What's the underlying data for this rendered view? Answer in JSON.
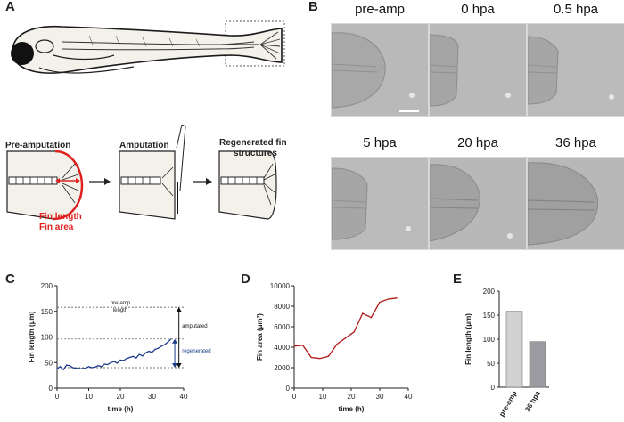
{
  "panels": {
    "a": "A",
    "b": "B",
    "c": "C",
    "d": "D",
    "e": "E"
  },
  "panel_a": {
    "step1": "Pre-amputation",
    "step2": "Amputation",
    "step3": "Regenerated fin",
    "step3b": "structures",
    "fin_length": "Fin length",
    "fin_area": "Fin area",
    "accent_color": "#e0201f"
  },
  "panel_b": {
    "labels": [
      "pre-amp",
      "0 hpa",
      "0.5 hpa",
      "5 hpa",
      "20 hpa",
      "36 hpa"
    ]
  },
  "chart_data": [
    {
      "id": "C",
      "type": "line",
      "title": "",
      "xlabel": "time (h)",
      "ylabel": "Fin length (μm)",
      "xlim": [
        0,
        40
      ],
      "ylim": [
        0,
        200
      ],
      "xticks": [
        0,
        10,
        20,
        30,
        40
      ],
      "yticks": [
        0,
        50,
        100,
        150,
        200
      ],
      "series": [
        {
          "name": "fin length",
          "color": "#1a3a8a",
          "x": [
            0,
            1,
            2,
            3,
            4,
            5,
            6,
            7,
            8,
            9,
            10,
            11,
            12,
            13,
            14,
            15,
            16,
            17,
            18,
            19,
            20,
            21,
            22,
            23,
            24,
            25,
            26,
            27,
            28,
            29,
            30,
            31,
            32,
            33,
            34,
            35,
            36
          ],
          "y": [
            38,
            42,
            36,
            45,
            44,
            40,
            39,
            38,
            38,
            39,
            42,
            40,
            41,
            44,
            42,
            47,
            46,
            50,
            52,
            49,
            55,
            54,
            58,
            60,
            62,
            59,
            66,
            63,
            69,
            72,
            70,
            76,
            78,
            82,
            85,
            90,
            96
          ]
        }
      ],
      "reference_lines": [
        {
          "label": "pre-amp length",
          "value": 158
        },
        {
          "label": "",
          "value": 96
        },
        {
          "label": "",
          "value": 40
        }
      ],
      "annotations": {
        "amputated": "amputated",
        "regenerated": "regenerated",
        "preamp_1": "pre-amp",
        "preamp_2": "length"
      }
    },
    {
      "id": "D",
      "type": "line",
      "xlabel": "time (h)",
      "ylabel": "Fin area (μm²)",
      "xlim": [
        0,
        40
      ],
      "ylim": [
        0,
        10000
      ],
      "xticks": [
        0,
        10,
        20,
        30,
        40
      ],
      "yticks": [
        0,
        2000,
        4000,
        6000,
        8000,
        10000
      ],
      "series": [
        {
          "name": "fin area",
          "color": "#b01818",
          "x": [
            0,
            3,
            6,
            9,
            12,
            15,
            18,
            21,
            24,
            27,
            30,
            33,
            36
          ],
          "y": [
            4100,
            4200,
            3000,
            2900,
            3100,
            4300,
            4900,
            5500,
            7300,
            6900,
            8400,
            8700,
            8800
          ]
        }
      ]
    },
    {
      "id": "E",
      "type": "bar",
      "ylabel": "Fin length (μm)",
      "ylim": [
        0,
        200
      ],
      "yticks": [
        0,
        50,
        100,
        150,
        200
      ],
      "categories": [
        "pre-amp",
        "36 hpa"
      ],
      "values": [
        158,
        95
      ],
      "colors": [
        "#d2d2d2",
        "#9a9aa0"
      ]
    }
  ]
}
